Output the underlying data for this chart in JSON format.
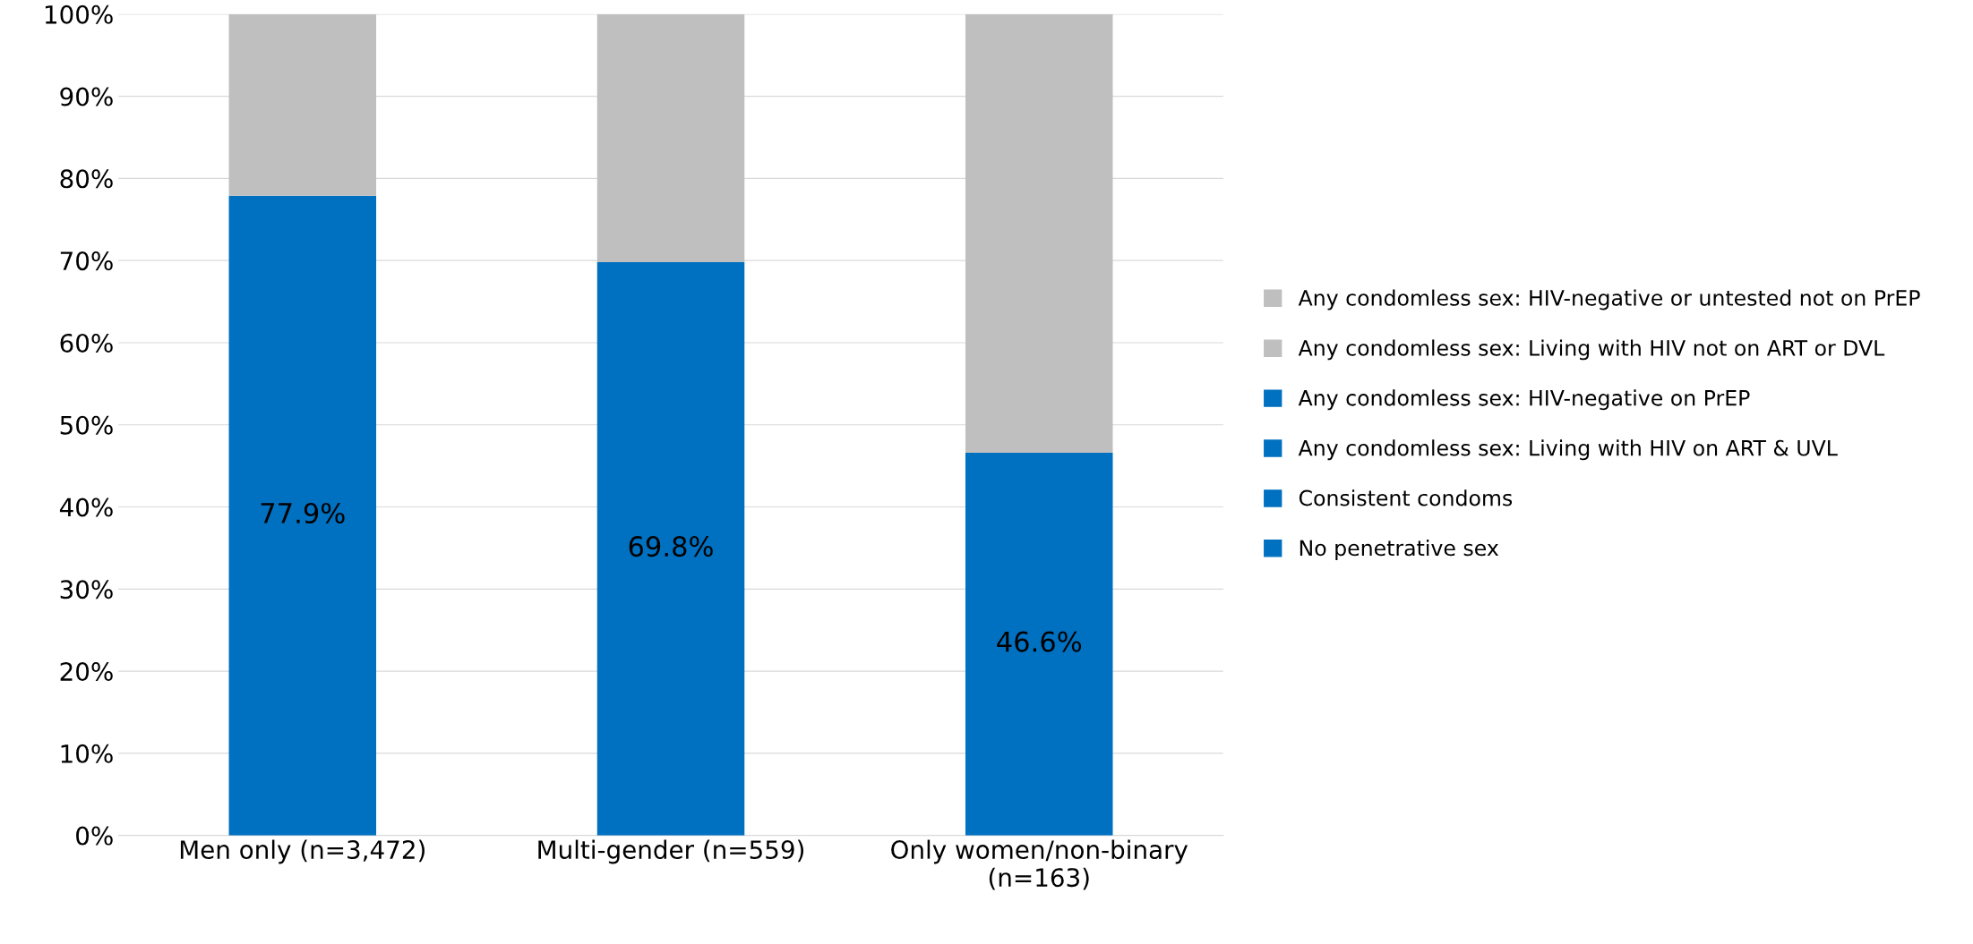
{
  "chart_data": {
    "type": "bar",
    "stacked": true,
    "categories": [
      "Men only (n=3,472)",
      "Multi-gender (n=559)",
      "Only women/non-binary\n(n=163)"
    ],
    "series": [
      {
        "name": "No penetrative sex",
        "color": "#0070c0",
        "values": [
          77.9,
          69.8,
          46.6
        ],
        "value_labels": [
          "77.9%",
          "69.8%",
          "46.6%"
        ]
      },
      {
        "name": "Consistent condoms",
        "color": "#0070c0",
        "values": [
          null,
          null,
          null
        ]
      },
      {
        "name": "Any condomless sex: Living with HIV on ART & UVL",
        "color": "#0070c0",
        "values": [
          null,
          null,
          null
        ]
      },
      {
        "name": "Any condomless sex: HIV-negative on PrEP",
        "color": "#0070c0",
        "values": [
          null,
          null,
          null
        ]
      },
      {
        "name": "Any condomless sex: Living with HIV not on ART or DVL",
        "color": "#bfbfbf",
        "values": [
          null,
          null,
          null
        ]
      },
      {
        "name": "Any condomless sex: HIV-negative or untested not on PrEP",
        "color": "#bfbfbf",
        "values": [
          22.1,
          30.2,
          53.4
        ]
      }
    ],
    "ylim": [
      0,
      100
    ],
    "yticks": [
      {
        "value": 0,
        "label": "0%"
      },
      {
        "value": 10,
        "label": "10%"
      },
      {
        "value": 20,
        "label": "20%"
      },
      {
        "value": 30,
        "label": "30%"
      },
      {
        "value": 40,
        "label": "40%"
      },
      {
        "value": 50,
        "label": "50%"
      },
      {
        "value": 60,
        "label": "60%"
      },
      {
        "value": 70,
        "label": "70%"
      },
      {
        "value": 80,
        "label": "80%"
      },
      {
        "value": 90,
        "label": "90%"
      },
      {
        "value": 100,
        "label": "100%"
      }
    ],
    "grid": "y",
    "legend": "right"
  }
}
